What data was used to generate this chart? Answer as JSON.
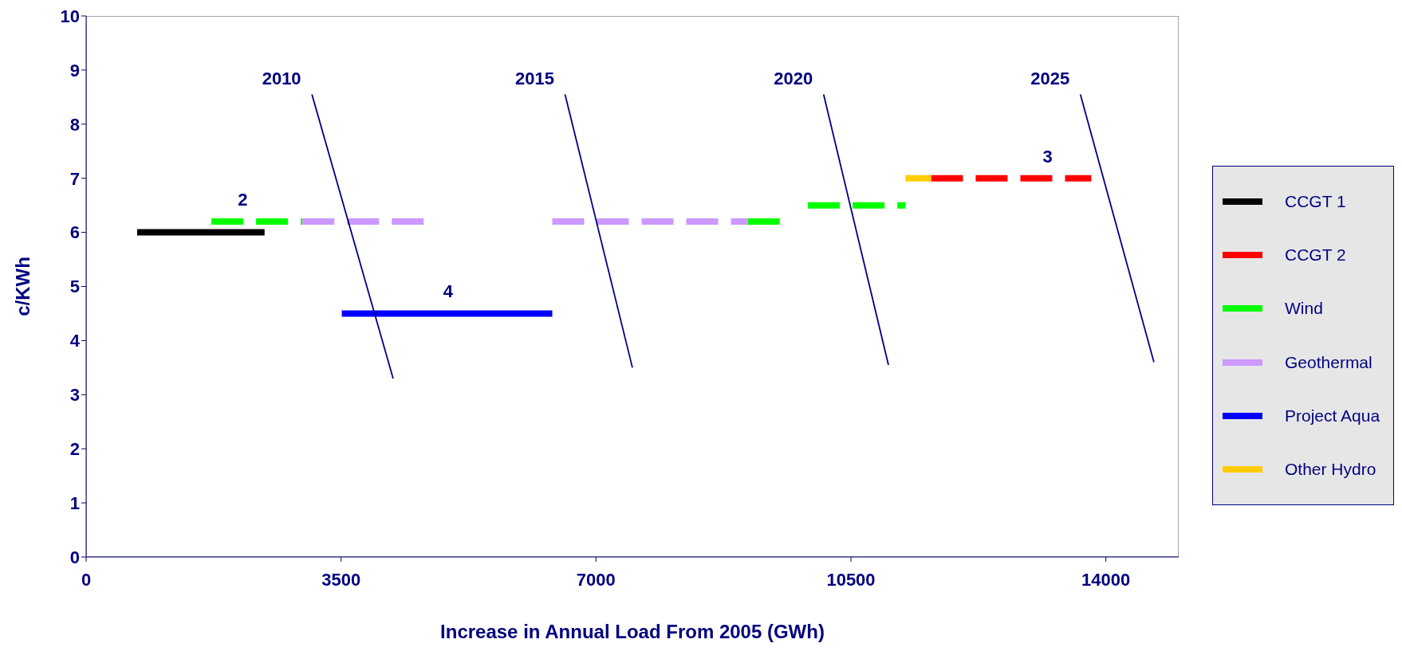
{
  "chart_data": {
    "type": "line",
    "xlabel": "Increase in Annual Load From 2005 (GWh)",
    "ylabel": "c/KWh",
    "xlim": [
      0,
      15000
    ],
    "xticks": [
      0,
      3500,
      7000,
      10500,
      14000
    ],
    "ylim": [
      0,
      10
    ],
    "yticks": [
      0,
      1,
      2,
      3,
      4,
      5,
      6,
      7,
      8,
      9,
      10
    ],
    "legend": "right",
    "grid": false,
    "series": [
      {
        "name": "CCGT 1",
        "color": "#000000",
        "line_style": "solid",
        "x": [
          700,
          2450
        ],
        "values": [
          6,
          6
        ]
      },
      {
        "name": "CCGT 2",
        "color": "#ff0000",
        "line_style": "dashed",
        "x": [
          11600,
          13800
        ],
        "values": [
          7,
          7
        ]
      },
      {
        "name": "Wind",
        "color": "#00ff00",
        "line_style": "dashed",
        "x": [
          1720,
          2970,
          2971,
          9085,
          9600,
          9601,
          9910,
          11250
        ],
        "values": [
          6.2,
          6.2,
          null,
          6.2,
          6.2,
          null,
          6.5,
          6.5
        ]
      },
      {
        "name": "Geothermal",
        "color": "#cc99ff",
        "line_style": "dashed",
        "x": [
          2970,
          4750,
          4751,
          6400,
          9085
        ],
        "values": [
          6.2,
          6.2,
          null,
          6.2,
          6.2
        ]
      },
      {
        "name": "Project Aqua",
        "color": "#0000ff",
        "line_style": "solid",
        "x": [
          3510,
          6400
        ],
        "values": [
          4.5,
          4.5
        ]
      },
      {
        "name": "Other Hydro",
        "color": "#ffcc00",
        "line_style": "solid",
        "x": [
          11250,
          11600
        ],
        "values": [
          7,
          7
        ]
      },
      {
        "color": "#000080",
        "line_style": "solid",
        "x": [
          3100,
          4215
        ],
        "values": [
          8.55,
          3.3
        ]
      },
      {
        "color": "#000080",
        "line_style": "solid",
        "x": [
          6575,
          7500
        ],
        "values": [
          8.55,
          3.5
        ]
      },
      {
        "color": "#000080",
        "line_style": "solid",
        "x": [
          10125,
          11015
        ],
        "values": [
          8.55,
          3.55
        ]
      },
      {
        "color": "#000080",
        "line_style": "solid",
        "x": [
          13650,
          14660
        ],
        "values": [
          8.55,
          3.6
        ]
      }
    ],
    "annotations": [
      {
        "text": "2010",
        "x": 3100,
        "y": 8.55
      },
      {
        "text": "2015",
        "x": 6575,
        "y": 8.55
      },
      {
        "text": "2020",
        "x": 10125,
        "y": 8.55
      },
      {
        "text": "2025",
        "x": 13650,
        "y": 8.55
      },
      {
        "text": "2",
        "x": 2150,
        "y": 6.2
      },
      {
        "text": "4",
        "x": 4970,
        "y": 4.5
      },
      {
        "text": "3",
        "x": 13200,
        "y": 7
      }
    ]
  }
}
